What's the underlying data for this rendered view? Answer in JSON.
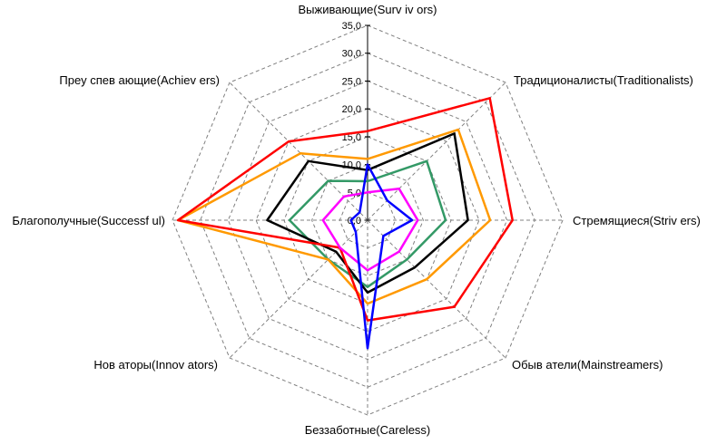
{
  "window": {
    "background": "#ffffff"
  },
  "chart_data": {
    "type": "radar",
    "title": "",
    "categories": [
      "Выживающие(Surv iv ors)",
      "Традиционалисты(Traditionalists)",
      "Стремящиеся(Striv ers)",
      "Обыв атели(Mainstreamers)",
      "Беззаботные(Careless)",
      "Нов аторы(Innov ators)",
      "Благополучные(Successf ul)",
      "Преу спев ающие(Achiev ers)"
    ],
    "axis": {
      "min": 0,
      "max": 35,
      "step": 5,
      "tick_labels": [
        "0,0",
        "5,0",
        "10,0",
        "15,0",
        "20,0",
        "25,0",
        "30,0",
        "35,0"
      ]
    },
    "grid": {
      "shape": "octagon",
      "line_color": "#808080",
      "dashed": true,
      "rings": 7
    },
    "legend": "none",
    "series": [
      {
        "name": "green",
        "color": "#339966",
        "values": [
          7,
          15,
          14,
          10,
          12,
          10,
          14,
          10
        ]
      },
      {
        "name": "black",
        "color": "#000000",
        "values": [
          9,
          22,
          18,
          12,
          13,
          8,
          18,
          15
        ]
      },
      {
        "name": "orange",
        "color": "#ff9900",
        "values": [
          11,
          23,
          22,
          15,
          15,
          10,
          34,
          17
        ]
      },
      {
        "name": "red",
        "color": "#ff0000",
        "values": [
          16,
          31,
          26,
          22,
          18,
          7,
          34,
          20
        ]
      },
      {
        "name": "magenta",
        "color": "#ff00ff",
        "values": [
          5,
          8,
          9,
          8,
          9,
          7,
          8,
          6
        ]
      },
      {
        "name": "blue",
        "color": "#0000ff",
        "values": [
          10,
          5,
          8,
          4,
          23,
          3,
          3,
          2
        ]
      }
    ]
  }
}
